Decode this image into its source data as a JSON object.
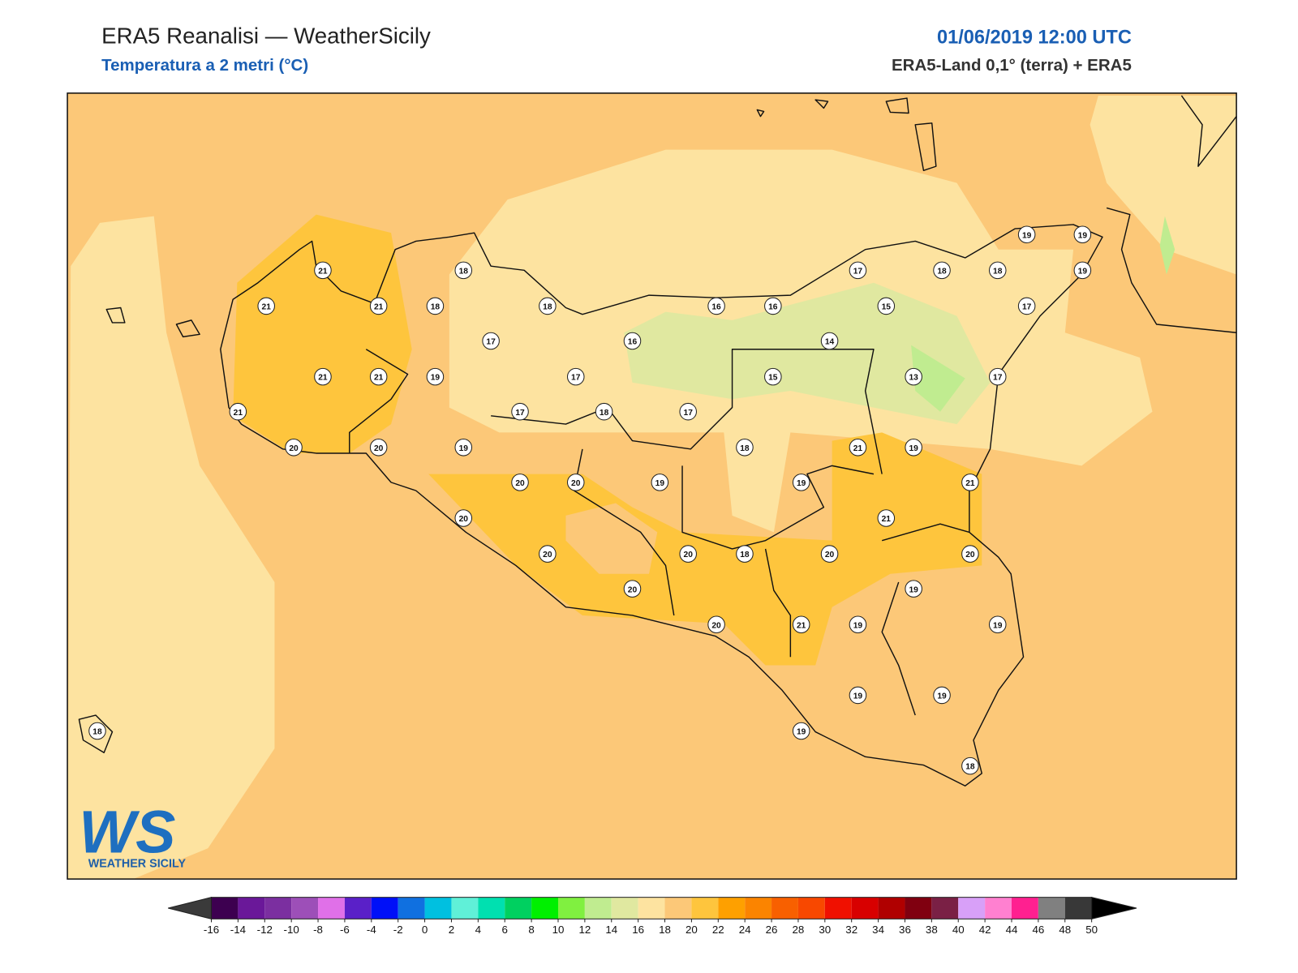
{
  "header": {
    "title": "ERA5 Reanalisi — WeatherSicily",
    "subtitle": "Temperatura a 2 metri (°C)",
    "date": "01/06/2019 12:00 UTC",
    "source": "ERA5-Land 0,1° (terra) + ERA5"
  },
  "stations": [
    21,
    18,
    21,
    21,
    18,
    18,
    17,
    16,
    21,
    21,
    19,
    17,
    17,
    18,
    17,
    21,
    20,
    20,
    19,
    20,
    20,
    19,
    20,
    20,
    20,
    20,
    18,
    20,
    18,
    16,
    16,
    17,
    18,
    18,
    19,
    19,
    19,
    15,
    17,
    14,
    15,
    13,
    17,
    21,
    19,
    19,
    21,
    21,
    20,
    20,
    19,
    21,
    19,
    19,
    19,
    19,
    19,
    18,
    18
  ],
  "colorbar": {
    "ticks": [
      -16,
      -14,
      -12,
      -10,
      -8,
      -6,
      -4,
      -2,
      0,
      2,
      4,
      6,
      8,
      10,
      12,
      14,
      16,
      18,
      20,
      22,
      24,
      26,
      28,
      30,
      32,
      34,
      36,
      38,
      40,
      42,
      44,
      46,
      48,
      50
    ],
    "colors": [
      "#3d0050",
      "#6a1899",
      "#7b2fa0",
      "#9d4fb8",
      "#e070e8",
      "#5a20c8",
      "#0010f8",
      "#1070e0",
      "#00c0e0",
      "#60f0d8",
      "#00e0b0",
      "#00d060",
      "#00f000",
      "#80f040",
      "#c0ec90",
      "#e0e8a0",
      "#fde3a0",
      "#fcc878",
      "#fec53d",
      "#fea000",
      "#fb8400",
      "#f86000",
      "#f84800",
      "#f01000",
      "#d80000",
      "#b00000",
      "#800010",
      "#7a2045",
      "#d8a0f8",
      "#ff80d0",
      "#ff2090",
      "#808080",
      "#383838"
    ],
    "under_color": "#3a3a3a",
    "over_color": "#000000"
  },
  "logo": {
    "mark": "WS",
    "text": "WEATHER SICILY"
  }
}
